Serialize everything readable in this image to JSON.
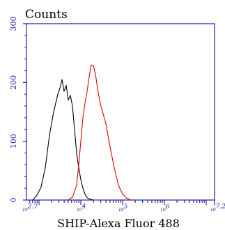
{
  "chart_data": {
    "type": "line",
    "title": "",
    "ylabel": "Counts",
    "xlabel": "SHIP-Alexa Fluor 488",
    "x_scale": "log",
    "x_range_log10": [
      2.7,
      7.2
    ],
    "ylim": [
      0,
      300
    ],
    "y_ticks": [
      {
        "value": 0,
        "label": "0"
      },
      {
        "value": 100,
        "label": "100"
      },
      {
        "value": 200,
        "label": "200"
      },
      {
        "value": 300,
        "label": "300"
      }
    ],
    "x_ticks": [
      {
        "value": 2.7,
        "label": "2.7"
      },
      {
        "value": 4,
        "label": "4"
      },
      {
        "value": 5,
        "label": "5"
      },
      {
        "value": 6,
        "label": "6"
      },
      {
        "value": 7.2,
        "label": "7.2"
      }
    ],
    "x_tick_base": "10",
    "colors": {
      "axis": "#1a1aa6",
      "series_black": "#000000",
      "series_red": "#e00000"
    },
    "series": [
      {
        "color": "#000000",
        "x": [
          2.85,
          2.95,
          3.05,
          3.15,
          3.25,
          3.35,
          3.45,
          3.5,
          3.55,
          3.6,
          3.65,
          3.7,
          3.75,
          3.8,
          3.85,
          3.9,
          3.95,
          4.0,
          4.05,
          4.1,
          4.15,
          4.2,
          4.3
        ],
        "y": [
          0,
          8,
          22,
          55,
          110,
          150,
          180,
          190,
          205,
          185,
          195,
          170,
          178,
          160,
          120,
          80,
          55,
          35,
          20,
          10,
          4,
          2,
          0
        ]
      },
      {
        "color": "#e00000",
        "x": [
          3.7,
          3.8,
          3.9,
          3.95,
          4.0,
          4.05,
          4.1,
          4.15,
          4.2,
          4.25,
          4.3,
          4.35,
          4.4,
          4.45,
          4.5,
          4.6,
          4.7,
          4.8,
          4.9,
          5.0,
          5.1,
          5.2
        ],
        "y": [
          0,
          5,
          25,
          60,
          100,
          140,
          165,
          185,
          210,
          230,
          228,
          215,
          190,
          170,
          155,
          130,
          90,
          55,
          25,
          10,
          3,
          0
        ]
      }
    ]
  }
}
